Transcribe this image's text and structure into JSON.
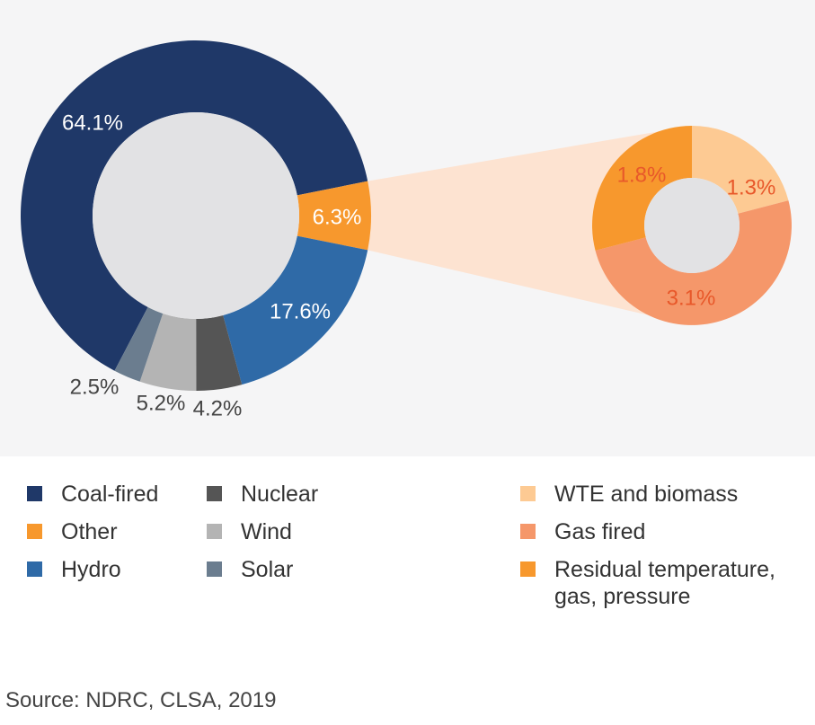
{
  "chart_data": [
    {
      "type": "pie",
      "donut": true,
      "slices": [
        {
          "label": "Coal-fired",
          "value": 64.1,
          "value_label": "64.1%",
          "color": "#1f3868"
        },
        {
          "label": "Other",
          "value": 6.3,
          "value_label": "6.3%",
          "color": "#f7982d"
        },
        {
          "label": "Hydro",
          "value": 17.6,
          "value_label": "17.6%",
          "color": "#2f6aa7"
        },
        {
          "label": "Nuclear",
          "value": 4.2,
          "value_label": "4.2%",
          "color": "#555555"
        },
        {
          "label": "Wind",
          "value": 5.2,
          "value_label": "5.2%",
          "color": "#b4b4b4"
        },
        {
          "label": "Solar",
          "value": 2.5,
          "value_label": "2.5%",
          "color": "#6b7d8f"
        }
      ]
    },
    {
      "type": "pie",
      "donut": true,
      "breakdown_of": "Other",
      "slices": [
        {
          "label": "WTE and biomass",
          "value": 1.3,
          "value_label": "1.3%",
          "color": "#fdca93"
        },
        {
          "label": "Gas fired",
          "value": 3.1,
          "value_label": "3.1%",
          "color": "#f5976a"
        },
        {
          "label": "Residual temperature, gas, pressure",
          "value": 1.8,
          "value_label": "1.8%",
          "color": "#f7982d"
        }
      ]
    }
  ],
  "legend": [
    {
      "label": "Coal-fired",
      "color": "#1f3868"
    },
    {
      "label": "Other",
      "color": "#f7982d"
    },
    {
      "label": "Hydro",
      "color": "#2f6aa7"
    },
    {
      "label": "Nuclear",
      "color": "#555555"
    },
    {
      "label": "Wind",
      "color": "#b4b4b4"
    },
    {
      "label": "Solar",
      "color": "#6b7d8f"
    },
    {
      "label": "WTE and biomass",
      "color": "#fdca93"
    },
    {
      "label": "Gas fired",
      "color": "#f5976a"
    },
    {
      "label": "Residual temperature,",
      "label_line2": "gas, pressure",
      "color": "#f7982d"
    }
  ],
  "colors": {
    "panel_background": "#f5f5f6",
    "donut_hole": "#e2e2e4",
    "connector": "#fde3d1",
    "label_light": "#ffffff",
    "label_dark": "#444444",
    "label_small_pie": "#e8582a"
  },
  "source": "Source: NDRC, CLSA, 2019"
}
